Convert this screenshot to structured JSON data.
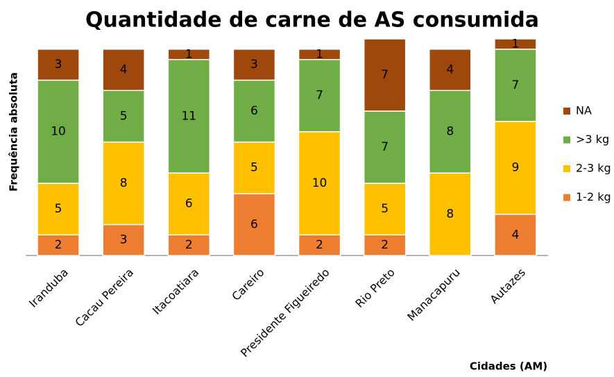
{
  "chart_data": {
    "type": "stacked_bar",
    "title": "Quantidade de carne de AS consumida",
    "y_label": "Frequência absoluta",
    "x_label": "Cidades (AM)",
    "categories": [
      "Iranduba",
      "Cacau Pereira",
      "Itacoatiara",
      "Careiro",
      "Presidente Figueiredo",
      "Rio Preto",
      "Manacapuru",
      "Autazes"
    ],
    "series": [
      {
        "name": "1-2 kg",
        "color": "#ed7d31",
        "values": [
          2,
          3,
          2,
          6,
          2,
          2,
          null,
          4
        ]
      },
      {
        "name": "2-3 kg",
        "color": "#ffc000",
        "values": [
          5,
          8,
          6,
          5,
          10,
          5,
          8,
          9
        ]
      },
      {
        "name": ">3 kg",
        "color": "#70ad47",
        "values": [
          10,
          5,
          11,
          6,
          7,
          7,
          8,
          7
        ]
      },
      {
        "name": "NA",
        "color": "#9e480e",
        "values": [
          3,
          4,
          1,
          3,
          1,
          7,
          4,
          1
        ]
      }
    ],
    "ylim": [
      0,
      21
    ],
    "legend": "right"
  }
}
